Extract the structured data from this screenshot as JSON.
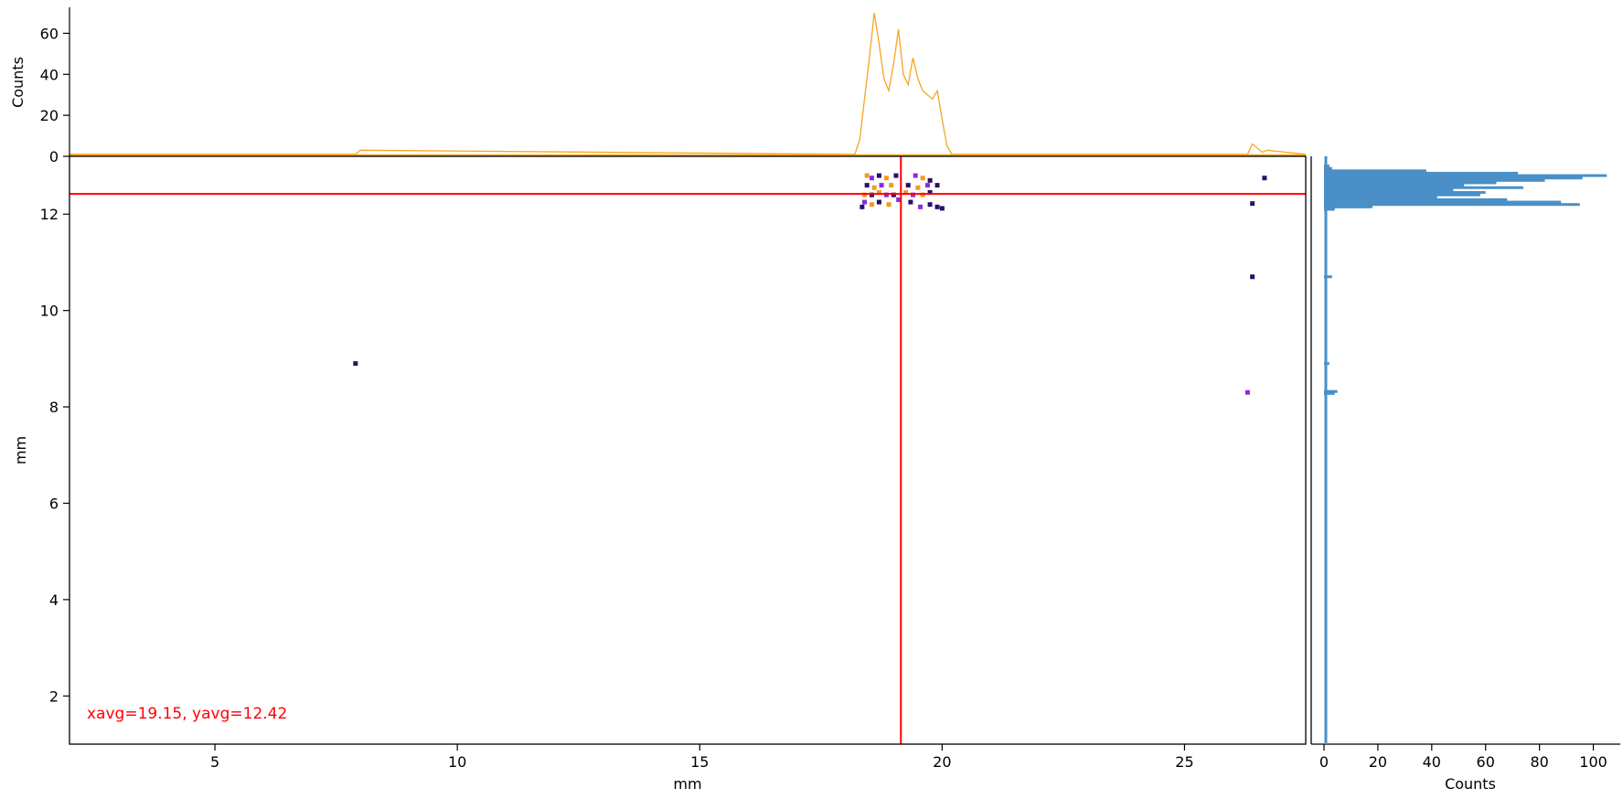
{
  "colors": {
    "top_histogram": "#f5a623",
    "right_histogram": "#4a8fc7",
    "crosshair": "#ff0000",
    "annotation": "#ff0000",
    "axis": "#000000",
    "pixel_dark": "#2a0f6b",
    "pixel_purple": "#8a2be2",
    "pixel_orange": "#f39b1c"
  },
  "chart_data": [
    {
      "type": "heatmap",
      "xlabel": "mm",
      "ylabel": "mm",
      "xlim": [
        2,
        27.5
      ],
      "ylim": [
        1,
        13.2
      ],
      "xticks": [
        5,
        10,
        15,
        20,
        25
      ],
      "yticks": [
        2,
        4,
        6,
        8,
        10,
        12
      ],
      "crosshair": {
        "x": 19.15,
        "y": 12.42
      },
      "annotation": "xavg=19.15, yavg=12.42",
      "pixels": [
        {
          "x": 18.45,
          "y": 12.8,
          "v": 3
        },
        {
          "x": 18.55,
          "y": 12.75,
          "v": 2
        },
        {
          "x": 18.7,
          "y": 12.8,
          "v": 1
        },
        {
          "x": 18.85,
          "y": 12.75,
          "v": 3
        },
        {
          "x": 19.05,
          "y": 12.8,
          "v": 1
        },
        {
          "x": 19.45,
          "y": 12.8,
          "v": 2
        },
        {
          "x": 19.6,
          "y": 12.75,
          "v": 3
        },
        {
          "x": 19.75,
          "y": 12.7,
          "v": 1
        },
        {
          "x": 18.45,
          "y": 12.6,
          "v": 1
        },
        {
          "x": 18.6,
          "y": 12.55,
          "v": 3
        },
        {
          "x": 18.75,
          "y": 12.6,
          "v": 2
        },
        {
          "x": 18.95,
          "y": 12.6,
          "v": 3
        },
        {
          "x": 19.3,
          "y": 12.6,
          "v": 1
        },
        {
          "x": 19.5,
          "y": 12.55,
          "v": 3
        },
        {
          "x": 19.7,
          "y": 12.6,
          "v": 2
        },
        {
          "x": 19.9,
          "y": 12.6,
          "v": 1
        },
        {
          "x": 18.4,
          "y": 12.4,
          "v": 3
        },
        {
          "x": 18.55,
          "y": 12.4,
          "v": 1
        },
        {
          "x": 18.7,
          "y": 12.45,
          "v": 3
        },
        {
          "x": 18.85,
          "y": 12.4,
          "v": 2
        },
        {
          "x": 19.0,
          "y": 12.4,
          "v": 1
        },
        {
          "x": 19.25,
          "y": 12.45,
          "v": 3
        },
        {
          "x": 19.4,
          "y": 12.4,
          "v": 2
        },
        {
          "x": 19.6,
          "y": 12.4,
          "v": 3
        },
        {
          "x": 19.75,
          "y": 12.45,
          "v": 1
        },
        {
          "x": 18.4,
          "y": 12.25,
          "v": 2
        },
        {
          "x": 18.55,
          "y": 12.2,
          "v": 3
        },
        {
          "x": 18.7,
          "y": 12.25,
          "v": 1
        },
        {
          "x": 18.9,
          "y": 12.2,
          "v": 3
        },
        {
          "x": 19.1,
          "y": 12.3,
          "v": 2
        },
        {
          "x": 19.35,
          "y": 12.25,
          "v": 1
        },
        {
          "x": 19.55,
          "y": 12.15,
          "v": 2
        },
        {
          "x": 19.75,
          "y": 12.2,
          "v": 1
        },
        {
          "x": 19.9,
          "y": 12.15,
          "v": 1
        },
        {
          "x": 20.0,
          "y": 12.12,
          "v": 1
        },
        {
          "x": 18.35,
          "y": 12.15,
          "v": 1
        },
        {
          "x": 26.65,
          "y": 12.75,
          "v": 1
        },
        {
          "x": 26.4,
          "y": 12.22,
          "v": 1
        },
        {
          "x": 26.4,
          "y": 10.7,
          "v": 1
        },
        {
          "x": 26.3,
          "y": 8.3,
          "v": 2
        },
        {
          "x": 7.9,
          "y": 8.9,
          "v": 1
        }
      ]
    },
    {
      "type": "area",
      "ylabel": "Counts",
      "xlim": [
        2,
        27.5
      ],
      "ylim": [
        0,
        70
      ],
      "yticks": [
        0,
        20,
        40,
        60
      ],
      "x": [
        2,
        7.9,
        8.0,
        18.2,
        18.3,
        18.4,
        18.5,
        18.6,
        18.7,
        18.8,
        18.9,
        19.0,
        19.1,
        19.2,
        19.3,
        19.4,
        19.5,
        19.6,
        19.7,
        19.8,
        19.9,
        20.0,
        20.1,
        20.2,
        26.3,
        26.4,
        26.5,
        26.6,
        26.7,
        27.5
      ],
      "y": [
        1,
        1,
        3,
        1,
        8,
        28,
        48,
        70,
        55,
        38,
        32,
        45,
        62,
        40,
        35,
        48,
        38,
        32,
        30,
        28,
        32,
        18,
        5,
        1,
        1,
        6,
        4,
        2,
        3,
        1
      ]
    },
    {
      "type": "bar",
      "orientation": "horizontal",
      "xlabel": "Counts",
      "xlim": [
        0,
        110
      ],
      "xticks": [
        0,
        20,
        40,
        60,
        80,
        100
      ],
      "ylim": [
        1,
        13.2
      ],
      "y": [
        13.0,
        12.95,
        12.9,
        12.85,
        12.8,
        12.75,
        12.7,
        12.65,
        12.6,
        12.55,
        12.5,
        12.45,
        12.4,
        12.35,
        12.3,
        12.25,
        12.2,
        12.15,
        12.1,
        10.7,
        8.9,
        8.32,
        8.28
      ],
      "values": [
        2,
        3,
        38,
        72,
        105,
        96,
        82,
        64,
        52,
        74,
        48,
        60,
        58,
        42,
        68,
        88,
        95,
        18,
        4,
        3,
        2,
        5,
        4
      ]
    }
  ]
}
